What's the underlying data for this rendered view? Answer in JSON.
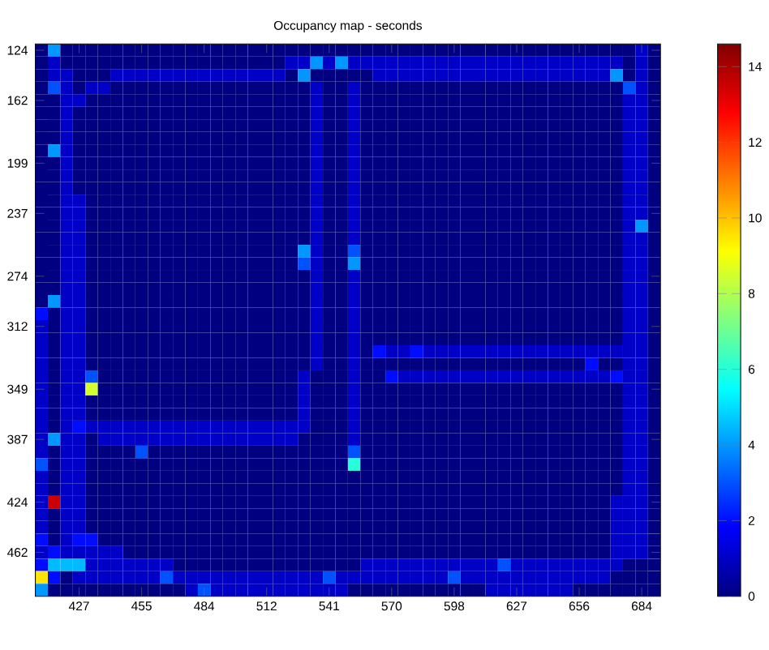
{
  "chart_data": {
    "type": "heatmap",
    "title": "Occupancy map - seconds",
    "categories": [
      null,
      null,
      null,
      "427",
      null,
      null,
      null,
      null,
      "455",
      null,
      null,
      null,
      null,
      "484",
      null,
      null,
      null,
      null,
      "512",
      null,
      null,
      null,
      null,
      "541",
      null,
      null,
      null,
      null,
      "570",
      null,
      null,
      null,
      null,
      "598",
      null,
      null,
      null,
      null,
      "627",
      null,
      null,
      null,
      null,
      "656",
      null,
      null,
      null,
      null,
      "684",
      null
    ],
    "y_categories": [
      "124",
      null,
      null,
      null,
      "162",
      null,
      null,
      null,
      null,
      "199",
      null,
      null,
      null,
      "237",
      null,
      null,
      null,
      null,
      "274",
      null,
      null,
      null,
      "312",
      null,
      null,
      null,
      null,
      "349",
      null,
      null,
      null,
      "387",
      null,
      null,
      null,
      null,
      "424",
      null,
      null,
      null,
      "462",
      null,
      null,
      null
    ],
    "clim": [
      0,
      14.6
    ],
    "cticks": [
      0,
      2,
      4,
      6,
      8,
      10,
      12,
      14
    ],
    "cells": [
      [
        0,
        4,
        0,
        0,
        0,
        0,
        0,
        0,
        0,
        0,
        0,
        0,
        0,
        0,
        0,
        0,
        0,
        0,
        0,
        0,
        0,
        0,
        0,
        0,
        0,
        0,
        0,
        0,
        0,
        0,
        0,
        0,
        0,
        0,
        0,
        0,
        0,
        0,
        0,
        0,
        0,
        0,
        0,
        0,
        0,
        0,
        0,
        0,
        1,
        0
      ],
      [
        0,
        1,
        0,
        0,
        0,
        0,
        0,
        0,
        0,
        0,
        0,
        0,
        0,
        0,
        0,
        0,
        0,
        0,
        0,
        0,
        1,
        1,
        4,
        1,
        4,
        1,
        1,
        1,
        1,
        1,
        1,
        1,
        1,
        1,
        1,
        1,
        1,
        1,
        1,
        1,
        1,
        1,
        1,
        1,
        1,
        1,
        1,
        0,
        1,
        0
      ],
      [
        0,
        1,
        1,
        0,
        0,
        0,
        1,
        1,
        1,
        1,
        1,
        1,
        1,
        1,
        1,
        1,
        1,
        1,
        1,
        1,
        0,
        4,
        0,
        0,
        0,
        0,
        0,
        1,
        1,
        1,
        1,
        1,
        1,
        1,
        1,
        1,
        1,
        1,
        1,
        1,
        1,
        1,
        1,
        1,
        1,
        1,
        4,
        0,
        1,
        0
      ],
      [
        0,
        3,
        1,
        0,
        1,
        1,
        0,
        0,
        0,
        0,
        0,
        0,
        0,
        0,
        0,
        0,
        0,
        0,
        0,
        0,
        0,
        0,
        1,
        0,
        0,
        1,
        0,
        0,
        0,
        0,
        0,
        0,
        0,
        0,
        0,
        0,
        0,
        0,
        0,
        0,
        0,
        0,
        0,
        0,
        0,
        0,
        0,
        3,
        1,
        0
      ],
      [
        0,
        0,
        1,
        1,
        0,
        0,
        0,
        0,
        0,
        0,
        0,
        0,
        0,
        0,
        0,
        0,
        0,
        0,
        0,
        0,
        0,
        0,
        1,
        0,
        0,
        1,
        0,
        0,
        0,
        0,
        0,
        0,
        0,
        0,
        0,
        0,
        0,
        0,
        0,
        0,
        0,
        0,
        0,
        0,
        0,
        0,
        0,
        1,
        1,
        0
      ],
      [
        0,
        0,
        1,
        0,
        0,
        0,
        0,
        0,
        0,
        0,
        0,
        0,
        0,
        0,
        0,
        0,
        0,
        0,
        0,
        0,
        0,
        0,
        1,
        0,
        0,
        1,
        0,
        0,
        0,
        0,
        0,
        0,
        0,
        0,
        0,
        0,
        0,
        0,
        0,
        0,
        0,
        0,
        0,
        0,
        0,
        0,
        0,
        1,
        1,
        0
      ],
      [
        0,
        0,
        1,
        0,
        0,
        0,
        0,
        0,
        0,
        0,
        0,
        0,
        0,
        0,
        0,
        0,
        0,
        0,
        0,
        0,
        0,
        0,
        1,
        0,
        0,
        1,
        0,
        0,
        0,
        0,
        0,
        0,
        0,
        0,
        0,
        0,
        0,
        0,
        0,
        0,
        0,
        0,
        0,
        0,
        0,
        0,
        0,
        1,
        1,
        0
      ],
      [
        0,
        0,
        1,
        0,
        0,
        0,
        0,
        0,
        0,
        0,
        0,
        0,
        0,
        0,
        0,
        0,
        0,
        0,
        0,
        0,
        0,
        0,
        1,
        0,
        0,
        1,
        0,
        0,
        0,
        0,
        0,
        0,
        0,
        0,
        0,
        0,
        0,
        0,
        0,
        0,
        0,
        0,
        0,
        0,
        0,
        0,
        0,
        1,
        1,
        0
      ],
      [
        0,
        4,
        1,
        0,
        0,
        0,
        0,
        0,
        0,
        0,
        0,
        0,
        0,
        0,
        0,
        0,
        0,
        0,
        0,
        0,
        0,
        0,
        1,
        0,
        0,
        1,
        0,
        0,
        0,
        0,
        0,
        0,
        0,
        0,
        0,
        0,
        0,
        0,
        0,
        0,
        0,
        0,
        0,
        0,
        0,
        0,
        0,
        1,
        1,
        0
      ],
      [
        0,
        0,
        1,
        0,
        0,
        0,
        0,
        0,
        0,
        0,
        0,
        0,
        0,
        0,
        0,
        0,
        0,
        0,
        0,
        0,
        0,
        0,
        1,
        0,
        0,
        1,
        0,
        0,
        0,
        0,
        0,
        0,
        0,
        0,
        0,
        0,
        0,
        0,
        0,
        0,
        0,
        0,
        0,
        0,
        0,
        0,
        0,
        1,
        1,
        0
      ],
      [
        0,
        0,
        1,
        0,
        0,
        0,
        0,
        0,
        0,
        0,
        0,
        0,
        0,
        0,
        0,
        0,
        0,
        0,
        0,
        0,
        0,
        0,
        1,
        0,
        0,
        1,
        0,
        0,
        0,
        0,
        0,
        0,
        0,
        0,
        0,
        0,
        0,
        0,
        0,
        0,
        0,
        0,
        0,
        0,
        0,
        0,
        0,
        1,
        1,
        0
      ],
      [
        0,
        0,
        1,
        0,
        0,
        0,
        0,
        0,
        0,
        0,
        0,
        0,
        0,
        0,
        0,
        0,
        0,
        0,
        0,
        0,
        0,
        0,
        1,
        0,
        0,
        1,
        0,
        0,
        0,
        0,
        0,
        0,
        0,
        0,
        0,
        0,
        0,
        0,
        0,
        0,
        0,
        0,
        0,
        0,
        0,
        0,
        0,
        1,
        1,
        0
      ],
      [
        0,
        0,
        1,
        1,
        0,
        0,
        0,
        0,
        0,
        0,
        0,
        0,
        0,
        0,
        0,
        0,
        0,
        0,
        0,
        0,
        0,
        0,
        1,
        0,
        0,
        1,
        0,
        0,
        0,
        0,
        0,
        0,
        0,
        0,
        0,
        0,
        0,
        0,
        0,
        0,
        0,
        0,
        0,
        0,
        0,
        0,
        0,
        1,
        1,
        0
      ],
      [
        0,
        0,
        1,
        1,
        0,
        0,
        0,
        0,
        0,
        0,
        0,
        0,
        0,
        0,
        0,
        0,
        0,
        0,
        0,
        0,
        0,
        0,
        1,
        0,
        0,
        1,
        0,
        0,
        0,
        0,
        0,
        0,
        0,
        0,
        0,
        0,
        0,
        0,
        0,
        0,
        0,
        0,
        0,
        0,
        0,
        0,
        0,
        1,
        1,
        0
      ],
      [
        0,
        0,
        1,
        1,
        0,
        0,
        0,
        0,
        0,
        0,
        0,
        0,
        0,
        0,
        0,
        0,
        0,
        0,
        0,
        0,
        0,
        0,
        1,
        0,
        0,
        1,
        0,
        0,
        0,
        0,
        0,
        0,
        0,
        0,
        0,
        0,
        0,
        0,
        0,
        0,
        0,
        0,
        0,
        0,
        0,
        0,
        0,
        1,
        4,
        0
      ],
      [
        0,
        0,
        1,
        1,
        0,
        0,
        0,
        0,
        0,
        0,
        0,
        0,
        0,
        0,
        0,
        0,
        0,
        0,
        0,
        0,
        0,
        0,
        1,
        0,
        0,
        1,
        0,
        0,
        0,
        0,
        0,
        0,
        0,
        0,
        0,
        0,
        0,
        0,
        0,
        0,
        0,
        0,
        0,
        0,
        0,
        0,
        0,
        1,
        1,
        0
      ],
      [
        0,
        0,
        1,
        1,
        0,
        0,
        0,
        0,
        0,
        0,
        0,
        0,
        0,
        0,
        0,
        0,
        0,
        0,
        0,
        0,
        0,
        4,
        1,
        0,
        0,
        3,
        0,
        0,
        0,
        0,
        0,
        0,
        0,
        0,
        0,
        0,
        0,
        0,
        0,
        0,
        0,
        0,
        0,
        0,
        0,
        0,
        0,
        1,
        1,
        0
      ],
      [
        0,
        0,
        1,
        1,
        0,
        0,
        0,
        0,
        0,
        0,
        0,
        0,
        0,
        0,
        0,
        0,
        0,
        0,
        0,
        0,
        0,
        3,
        1,
        0,
        0,
        4,
        0,
        0,
        0,
        0,
        0,
        0,
        0,
        0,
        0,
        0,
        0,
        0,
        0,
        0,
        0,
        0,
        0,
        0,
        0,
        0,
        0,
        1,
        1,
        0
      ],
      [
        0,
        0,
        1,
        1,
        0,
        0,
        0,
        0,
        0,
        0,
        0,
        0,
        0,
        0,
        0,
        0,
        0,
        0,
        0,
        0,
        0,
        0,
        1,
        0,
        0,
        1,
        0,
        0,
        0,
        0,
        0,
        0,
        0,
        0,
        0,
        0,
        0,
        0,
        0,
        0,
        0,
        0,
        0,
        0,
        0,
        0,
        0,
        1,
        1,
        0
      ],
      [
        0,
        0,
        1,
        1,
        0,
        0,
        0,
        0,
        0,
        0,
        0,
        0,
        0,
        0,
        0,
        0,
        0,
        0,
        0,
        0,
        0,
        0,
        1,
        0,
        0,
        1,
        0,
        0,
        0,
        0,
        0,
        0,
        0,
        0,
        0,
        0,
        0,
        0,
        0,
        0,
        0,
        0,
        0,
        0,
        0,
        0,
        0,
        1,
        1,
        0
      ],
      [
        0,
        4,
        1,
        1,
        0,
        0,
        0,
        0,
        0,
        0,
        0,
        0,
        0,
        0,
        0,
        0,
        0,
        0,
        0,
        0,
        0,
        0,
        1,
        0,
        0,
        1,
        0,
        0,
        0,
        0,
        0,
        0,
        0,
        0,
        0,
        0,
        0,
        0,
        0,
        0,
        0,
        0,
        0,
        0,
        0,
        0,
        0,
        1,
        1,
        0
      ],
      [
        2,
        0,
        1,
        1,
        0,
        0,
        0,
        0,
        0,
        0,
        0,
        0,
        0,
        0,
        0,
        0,
        0,
        0,
        0,
        0,
        0,
        0,
        1,
        0,
        0,
        1,
        0,
        0,
        0,
        0,
        0,
        0,
        0,
        0,
        0,
        0,
        0,
        0,
        0,
        0,
        0,
        0,
        0,
        0,
        0,
        0,
        0,
        1,
        1,
        0
      ],
      [
        1,
        0,
        1,
        1,
        0,
        0,
        0,
        0,
        0,
        0,
        0,
        0,
        0,
        0,
        0,
        0,
        0,
        0,
        0,
        0,
        0,
        0,
        1,
        0,
        0,
        1,
        0,
        0,
        0,
        0,
        0,
        0,
        0,
        0,
        0,
        0,
        0,
        0,
        0,
        0,
        0,
        0,
        0,
        0,
        0,
        0,
        0,
        1,
        1,
        0
      ],
      [
        1,
        0,
        1,
        1,
        0,
        0,
        0,
        0,
        0,
        0,
        0,
        0,
        0,
        0,
        0,
        0,
        0,
        0,
        0,
        0,
        0,
        0,
        1,
        0,
        0,
        1,
        0,
        0,
        0,
        0,
        0,
        0,
        0,
        0,
        0,
        0,
        0,
        0,
        0,
        0,
        0,
        0,
        0,
        0,
        0,
        0,
        0,
        1,
        1,
        0
      ],
      [
        1,
        0,
        1,
        1,
        0,
        0,
        0,
        0,
        0,
        0,
        0,
        0,
        0,
        0,
        0,
        0,
        0,
        0,
        0,
        0,
        0,
        0,
        1,
        0,
        0,
        1,
        0,
        2,
        1,
        1,
        2,
        1,
        1,
        1,
        1,
        1,
        1,
        1,
        1,
        1,
        1,
        1,
        1,
        1,
        1,
        1,
        1,
        1,
        1,
        0
      ],
      [
        1,
        0,
        1,
        1,
        0,
        0,
        0,
        0,
        0,
        0,
        0,
        0,
        0,
        0,
        0,
        0,
        0,
        0,
        0,
        0,
        0,
        0,
        1,
        0,
        0,
        1,
        0,
        0,
        0,
        0,
        0,
        0,
        0,
        0,
        0,
        0,
        0,
        0,
        0,
        0,
        0,
        0,
        0,
        0,
        2,
        0,
        0,
        1,
        1,
        0
      ],
      [
        1,
        0,
        1,
        1,
        3,
        0,
        0,
        0,
        0,
        0,
        0,
        0,
        0,
        0,
        0,
        0,
        0,
        0,
        0,
        0,
        0,
        1,
        0,
        0,
        0,
        1,
        0,
        0,
        2,
        1,
        1,
        1,
        1,
        1,
        1,
        1,
        1,
        1,
        1,
        1,
        1,
        1,
        1,
        1,
        1,
        1,
        2,
        1,
        1,
        0
      ],
      [
        1,
        0,
        1,
        1,
        8.5,
        0,
        0,
        0,
        0,
        0,
        0,
        0,
        0,
        0,
        0,
        0,
        0,
        0,
        0,
        0,
        0,
        1,
        0,
        0,
        0,
        1,
        0,
        0,
        0,
        0,
        0,
        0,
        0,
        0,
        0,
        0,
        0,
        0,
        0,
        0,
        0,
        0,
        0,
        0,
        0,
        0,
        0,
        1,
        1,
        0
      ],
      [
        1,
        0,
        1,
        1,
        0,
        0,
        0,
        0,
        0,
        0,
        0,
        0,
        0,
        0,
        0,
        0,
        0,
        0,
        0,
        0,
        0,
        1,
        0,
        0,
        0,
        1,
        0,
        0,
        0,
        0,
        0,
        0,
        0,
        0,
        0,
        0,
        0,
        0,
        0,
        0,
        0,
        0,
        0,
        0,
        0,
        0,
        0,
        1,
        1,
        0
      ],
      [
        1,
        0,
        1,
        1,
        0,
        0,
        0,
        0,
        0,
        0,
        0,
        0,
        0,
        0,
        0,
        0,
        0,
        0,
        0,
        0,
        0,
        1,
        0,
        0,
        0,
        1,
        0,
        0,
        0,
        0,
        0,
        0,
        0,
        0,
        0,
        0,
        0,
        0,
        0,
        0,
        0,
        0,
        0,
        0,
        0,
        0,
        0,
        1,
        1,
        0
      ],
      [
        1,
        0,
        1,
        2,
        1,
        1,
        1,
        1,
        1,
        1,
        1,
        1,
        1,
        1,
        1,
        1,
        1,
        1,
        1,
        1,
        1,
        1,
        0,
        0,
        0,
        1,
        0,
        0,
        0,
        0,
        0,
        0,
        0,
        0,
        0,
        0,
        0,
        0,
        0,
        0,
        0,
        0,
        0,
        0,
        0,
        0,
        0,
        1,
        1,
        0
      ],
      [
        1,
        4,
        1,
        1,
        0,
        1,
        1,
        1,
        1,
        1,
        1,
        1,
        1,
        1,
        1,
        1,
        1,
        1,
        1,
        1,
        1,
        0,
        0,
        0,
        0,
        1,
        0,
        0,
        0,
        0,
        0,
        0,
        0,
        0,
        0,
        0,
        0,
        0,
        0,
        0,
        0,
        0,
        0,
        0,
        0,
        0,
        0,
        1,
        1,
        0
      ],
      [
        1,
        0,
        1,
        1,
        0,
        0,
        0,
        0,
        3,
        0,
        0,
        0,
        0,
        0,
        0,
        0,
        0,
        0,
        0,
        0,
        0,
        0,
        0,
        0,
        0,
        3,
        0,
        0,
        0,
        0,
        0,
        0,
        0,
        0,
        0,
        0,
        0,
        0,
        0,
        0,
        0,
        0,
        0,
        0,
        0,
        0,
        0,
        1,
        1,
        0
      ],
      [
        3,
        0,
        1,
        1,
        0,
        0,
        0,
        0,
        0,
        0,
        0,
        0,
        0,
        0,
        0,
        0,
        0,
        0,
        0,
        0,
        0,
        0,
        0,
        0,
        0,
        6,
        0,
        0,
        0,
        0,
        0,
        0,
        0,
        0,
        0,
        0,
        0,
        0,
        0,
        0,
        0,
        0,
        0,
        0,
        0,
        0,
        0,
        1,
        1,
        0
      ],
      [
        1,
        0,
        1,
        1,
        0,
        0,
        0,
        0,
        0,
        0,
        0,
        0,
        0,
        0,
        0,
        0,
        0,
        0,
        0,
        0,
        0,
        0,
        0,
        0,
        0,
        0,
        0,
        0,
        0,
        0,
        0,
        0,
        0,
        0,
        0,
        0,
        0,
        0,
        0,
        0,
        0,
        0,
        0,
        0,
        0,
        0,
        0,
        1,
        1,
        0
      ],
      [
        1,
        0,
        1,
        1,
        0,
        0,
        0,
        0,
        0,
        0,
        0,
        0,
        0,
        0,
        0,
        0,
        0,
        0,
        0,
        0,
        0,
        0,
        0,
        0,
        0,
        0,
        0,
        0,
        0,
        0,
        0,
        0,
        0,
        0,
        0,
        0,
        0,
        0,
        0,
        0,
        0,
        0,
        0,
        0,
        0,
        0,
        0,
        1,
        1,
        0
      ],
      [
        1,
        13.5,
        1,
        1,
        0,
        0,
        0,
        0,
        0,
        0,
        0,
        0,
        0,
        0,
        0,
        0,
        0,
        0,
        0,
        0,
        0,
        0,
        0,
        0,
        0,
        0,
        0,
        0,
        0,
        0,
        0,
        0,
        0,
        0,
        0,
        0,
        0,
        0,
        0,
        0,
        0,
        0,
        0,
        0,
        0,
        0,
        1,
        1,
        1,
        0
      ],
      [
        1,
        0,
        1,
        1,
        0,
        0,
        0,
        0,
        0,
        0,
        0,
        0,
        0,
        0,
        0,
        0,
        0,
        0,
        0,
        0,
        0,
        0,
        0,
        0,
        0,
        0,
        0,
        0,
        0,
        0,
        0,
        0,
        0,
        0,
        0,
        0,
        0,
        0,
        0,
        0,
        0,
        0,
        0,
        0,
        0,
        0,
        1,
        1,
        1,
        0
      ],
      [
        1,
        0,
        1,
        1,
        0,
        0,
        0,
        0,
        0,
        0,
        0,
        0,
        0,
        0,
        0,
        0,
        0,
        0,
        0,
        0,
        0,
        0,
        0,
        0,
        0,
        0,
        0,
        0,
        0,
        0,
        0,
        0,
        0,
        0,
        0,
        0,
        0,
        0,
        0,
        0,
        0,
        0,
        0,
        0,
        0,
        0,
        1,
        1,
        1,
        0
      ],
      [
        2,
        0,
        1,
        2,
        2,
        0,
        0,
        0,
        0,
        0,
        0,
        0,
        0,
        0,
        0,
        0,
        0,
        0,
        0,
        0,
        0,
        0,
        0,
        0,
        0,
        0,
        0,
        0,
        0,
        0,
        0,
        0,
        0,
        0,
        0,
        0,
        0,
        0,
        0,
        0,
        0,
        0,
        0,
        0,
        0,
        0,
        1,
        1,
        1,
        0
      ],
      [
        1,
        2,
        1,
        1,
        1,
        1,
        1,
        0,
        0,
        0,
        0,
        0,
        0,
        0,
        0,
        0,
        0,
        0,
        0,
        0,
        0,
        0,
        0,
        0,
        0,
        0,
        0,
        0,
        0,
        0,
        0,
        0,
        0,
        0,
        0,
        0,
        0,
        0,
        0,
        0,
        0,
        0,
        0,
        0,
        0,
        0,
        1,
        1,
        1,
        0
      ],
      [
        2,
        4.5,
        4.5,
        4.5,
        1,
        1,
        1,
        1,
        1,
        1,
        1,
        0,
        0,
        0,
        0,
        0,
        0,
        0,
        0,
        0,
        0,
        0,
        0,
        0,
        0,
        0,
        1,
        1,
        1,
        1,
        1,
        1,
        1,
        1,
        1,
        1,
        1,
        3,
        1,
        1,
        1,
        1,
        1,
        1,
        1,
        1,
        1,
        0,
        0,
        0
      ],
      [
        9.5,
        2,
        0,
        1,
        1,
        1,
        1,
        1,
        1,
        1,
        3,
        1,
        1,
        1,
        1,
        1,
        1,
        1,
        1,
        1,
        1,
        1,
        1,
        3,
        1,
        1,
        1,
        1,
        1,
        1,
        1,
        1,
        1,
        3,
        1,
        1,
        1,
        1,
        1,
        1,
        1,
        1,
        1,
        1,
        1,
        1,
        0,
        0,
        0,
        0
      ],
      [
        4,
        0,
        0,
        0,
        0,
        0,
        0,
        0,
        0,
        0,
        0,
        0,
        1,
        3,
        1,
        1,
        1,
        1,
        1,
        1,
        1,
        1,
        1,
        1,
        1,
        0,
        0,
        0,
        0,
        0,
        0,
        0,
        0,
        0,
        0,
        0,
        1,
        1,
        1,
        1,
        1,
        1,
        1,
        0,
        0,
        0,
        0,
        0,
        0,
        0
      ]
    ]
  }
}
